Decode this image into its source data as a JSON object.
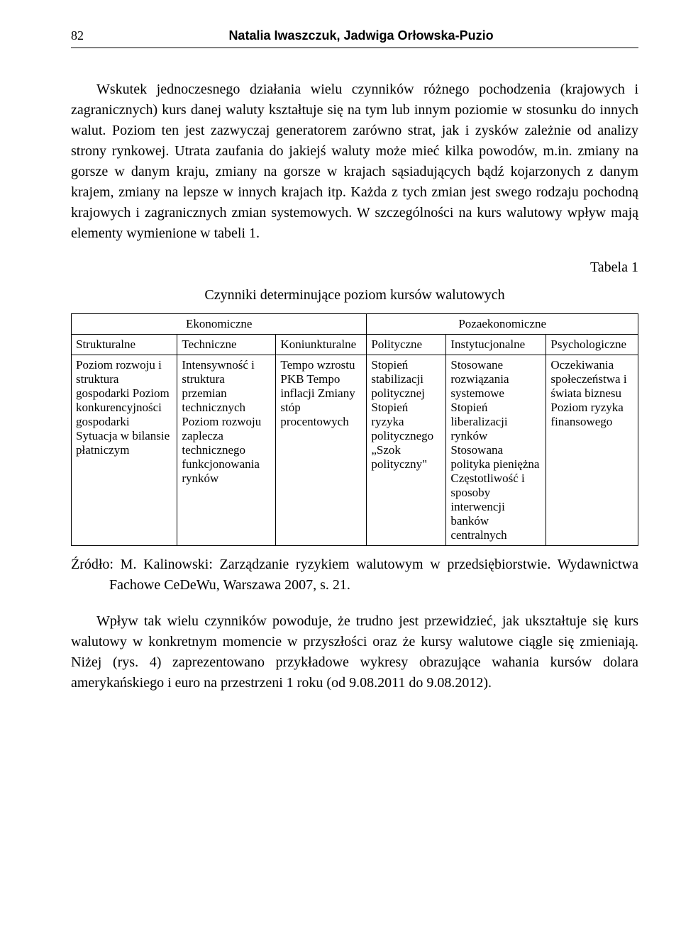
{
  "header": {
    "page_number": "82",
    "authors": "Natalia Iwaszczuk, Jadwiga Orłowska-Puzio"
  },
  "paragraphs": {
    "p1": "Wskutek jednoczesnego działania wielu czynników różnego pochodzenia (krajowych i zagranicznych) kurs danej waluty kształtuje się na tym lub innym poziomie w stosunku do innych walut. Poziom ten jest zazwyczaj generatorem zarówno strat, jak i zysków zależnie od analizy strony rynkowej. Utrata zaufania do jakiejś waluty może mieć kilka powodów, m.in. zmiany na gorsze w danym kraju, zmiany na gorsze w krajach sąsiadujących bądź kojarzonych z danym krajem, zmiany na lepsze w innych krajach itp. Każda z tych zmian jest swego rodzaju pochodną krajowych i zagranicznych zmian systemowych. W szczególności na kurs walutowy wpływ mają elementy wymienione w tabeli 1.",
    "p2": "Wpływ tak wielu czynników powoduje, że trudno jest przewidzieć, jak ukształtuje się kurs walutowy w konkretnym momencie w przyszłości oraz że kursy walutowe ciągle się zmieniają. Niżej (rys. 4) zaprezentowano przykładowe wykresy obrazujące wahania kursów dolara amerykańskiego i euro na przestrzeni 1 roku (od 9.08.2011 do 9.08.2012)."
  },
  "table": {
    "label": "Tabela 1",
    "title": "Czynniki determinujące poziom kursów walutowych",
    "group_headers": {
      "economic": "Ekonomiczne",
      "non_economic": "Pozaekonomiczne"
    },
    "sub_headers": {
      "structural": "Strukturalne",
      "technical": "Techniczne",
      "cyclical": "Koniunkturalne",
      "political": "Polityczne",
      "institutional": "Instytucjonalne",
      "psychological": "Psychologiczne"
    },
    "cells": {
      "structural": "Poziom rozwoju i struktura gospodarki Poziom konkurencyjności gospodarki Sytuacja w bilansie płatniczym",
      "technical": "Intensywność i struktura przemian technicznych Poziom rozwoju zaplecza technicznego funkcjonowania rynków",
      "cyclical": "Tempo wzrostu PKB Tempo inflacji Zmiany stóp procentowych",
      "political": "Stopień stabilizacji politycznej Stopień ryzyka politycznego „Szok polityczny\"",
      "institutional": "Stosowane rozwiązania systemowe Stopień liberalizacji rynków Stosowana polityka pieniężna Częstotliwość i sposoby interwencji banków centralnych",
      "psychological": "Oczekiwania społeczeństwa i świata biznesu Poziom ryzyka finansowego"
    }
  },
  "source": {
    "prefix": "Źródło:",
    "text": "M. Kalinowski: Zarządzanie ryzykiem walutowym w przedsiębiorstwie. Wydawnictwa Fachowe CeDeWu, Warszawa 2007, s. 21."
  }
}
